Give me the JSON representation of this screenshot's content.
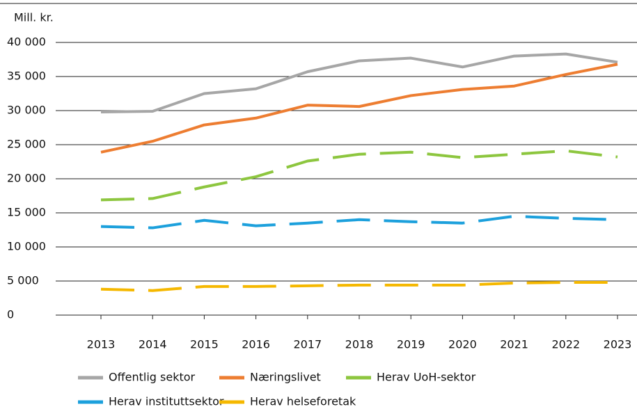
{
  "chart_data": {
    "type": "line",
    "y_label": "Mill. kr.",
    "x": [
      2013,
      2014,
      2015,
      2016,
      2017,
      2018,
      2019,
      2020,
      2021,
      2022,
      2023
    ],
    "xlim": [
      2013,
      2023
    ],
    "xticks": [
      2013,
      2014,
      2015,
      2016,
      2017,
      2018,
      2019,
      2020,
      2021,
      2022,
      2023
    ],
    "ylim": [
      0,
      40000
    ],
    "yticks": [
      0,
      {
        "value": 5000,
        "label": "5 000"
      },
      {
        "value": 10000,
        "label": "10 000"
      },
      {
        "value": 15000,
        "label": "15 000"
      },
      {
        "value": 20000,
        "label": "20 000"
      },
      {
        "value": 25000,
        "label": "25 000"
      },
      {
        "value": 30000,
        "label": "30 000"
      },
      {
        "value": 35000,
        "label": "35 000"
      },
      {
        "value": 40000,
        "label": "40 000"
      }
    ],
    "grid": true,
    "legend": "bottom",
    "series": [
      {
        "name": "Offentlig sektor",
        "color": "#a6a6a6",
        "dashed": false,
        "values": [
          29800,
          29900,
          32500,
          33200,
          35700,
          37300,
          37700,
          36400,
          38000,
          38300,
          37100
        ]
      },
      {
        "name": "Næringslivet",
        "color": "#ed7d31",
        "dashed": false,
        "values": [
          23900,
          25500,
          27900,
          28900,
          30800,
          30600,
          32200,
          33100,
          33600,
          35300,
          36800
        ]
      },
      {
        "name": "Herav UoH-sektor",
        "color": "#8dc63f",
        "dashed": true,
        "values": [
          16900,
          17100,
          18800,
          20300,
          22600,
          23600,
          23900,
          23100,
          23600,
          24100,
          23200
        ]
      },
      {
        "name": "Herav instituttsektor",
        "color": "#1ca0dc",
        "dashed": true,
        "values": [
          13000,
          12800,
          13900,
          13100,
          13500,
          14000,
          13700,
          13500,
          14500,
          14200,
          14000
        ]
      },
      {
        "name": "Herav helseforetak",
        "color": "#f5b800",
        "dashed": true,
        "values": [
          3800,
          3600,
          4200,
          4200,
          4300,
          4400,
          4400,
          4400,
          4700,
          4800,
          4800
        ]
      }
    ]
  }
}
